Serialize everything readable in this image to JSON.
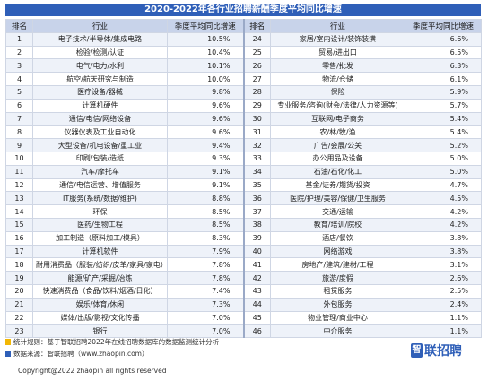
{
  "chart_data": {
    "type": "table",
    "title": "2020-2022年各行业招聘薪酬季度平均同比增速",
    "columns": [
      "排名",
      "行业",
      "季度平均同比增速",
      "排名",
      "行业",
      "季度平均同比增速"
    ],
    "rows": [
      {
        "rank": "1",
        "industry": "电子技术/半导体/集成电路",
        "value": "10.5%"
      },
      {
        "rank": "2",
        "industry": "检验/检测/认证",
        "value": "10.4%"
      },
      {
        "rank": "3",
        "industry": "电气/电力/水利",
        "value": "10.1%"
      },
      {
        "rank": "4",
        "industry": "航空/航天研究与制造",
        "value": "10.0%"
      },
      {
        "rank": "5",
        "industry": "医疗设备/器械",
        "value": "9.8%"
      },
      {
        "rank": "6",
        "industry": "计算机硬件",
        "value": "9.6%"
      },
      {
        "rank": "7",
        "industry": "通信/电信/网络设备",
        "value": "9.6%"
      },
      {
        "rank": "8",
        "industry": "仪器仪表及工业自动化",
        "value": "9.6%"
      },
      {
        "rank": "9",
        "industry": "大型设备/机电设备/重工业",
        "value": "9.4%"
      },
      {
        "rank": "10",
        "industry": "印刷/包装/造纸",
        "value": "9.3%"
      },
      {
        "rank": "11",
        "industry": "汽车/摩托车",
        "value": "9.1%"
      },
      {
        "rank": "12",
        "industry": "通信/电信运营、增值服务",
        "value": "9.1%"
      },
      {
        "rank": "13",
        "industry": "IT服务(系统/数据/维护)",
        "value": "8.8%"
      },
      {
        "rank": "14",
        "industry": "环保",
        "value": "8.5%"
      },
      {
        "rank": "15",
        "industry": "医药/生物工程",
        "value": "8.5%"
      },
      {
        "rank": "16",
        "industry": "加工制造（原料加工/模具）",
        "value": "8.3%"
      },
      {
        "rank": "17",
        "industry": "计算机软件",
        "value": "7.9%"
      },
      {
        "rank": "18",
        "industry": "耐用消费品（服装/纺织/皮革/家具/家电）",
        "value": "7.8%"
      },
      {
        "rank": "19",
        "industry": "能源/矿产/采掘/冶炼",
        "value": "7.8%"
      },
      {
        "rank": "20",
        "industry": "快速消费品（食品/饮料/烟酒/日化）",
        "value": "7.4%"
      },
      {
        "rank": "21",
        "industry": "娱乐/体育/休闲",
        "value": "7.3%"
      },
      {
        "rank": "22",
        "industry": "媒体/出版/影视/文化传播",
        "value": "7.0%"
      },
      {
        "rank": "23",
        "industry": "银行",
        "value": "7.0%"
      },
      {
        "rank": "24",
        "industry": "家居/室内设计/装饰装潢",
        "value": "6.6%"
      },
      {
        "rank": "25",
        "industry": "贸易/进出口",
        "value": "6.5%"
      },
      {
        "rank": "26",
        "industry": "零售/批发",
        "value": "6.3%"
      },
      {
        "rank": "27",
        "industry": "物流/仓储",
        "value": "6.1%"
      },
      {
        "rank": "28",
        "industry": "保险",
        "value": "5.9%"
      },
      {
        "rank": "29",
        "industry": "专业服务/咨询(财会/法律/人力资源等)",
        "value": "5.7%"
      },
      {
        "rank": "30",
        "industry": "互联网/电子商务",
        "value": "5.4%"
      },
      {
        "rank": "31",
        "industry": "农/林/牧/渔",
        "value": "5.4%"
      },
      {
        "rank": "32",
        "industry": "广告/会展/公关",
        "value": "5.2%"
      },
      {
        "rank": "33",
        "industry": "办公用品及设备",
        "value": "5.0%"
      },
      {
        "rank": "34",
        "industry": "石油/石化/化工",
        "value": "5.0%"
      },
      {
        "rank": "35",
        "industry": "基金/证券/期货/投资",
        "value": "4.7%"
      },
      {
        "rank": "36",
        "industry": "医院/护理/美容/保健/卫生服务",
        "value": "4.5%"
      },
      {
        "rank": "37",
        "industry": "交通/运输",
        "value": "4.2%"
      },
      {
        "rank": "38",
        "industry": "教育/培训/院校",
        "value": "4.2%"
      },
      {
        "rank": "39",
        "industry": "酒店/餐饮",
        "value": "3.8%"
      },
      {
        "rank": "40",
        "industry": "网络游戏",
        "value": "3.8%"
      },
      {
        "rank": "41",
        "industry": "房地产/建筑/建材/工程",
        "value": "3.1%"
      },
      {
        "rank": "42",
        "industry": "旅游/度假",
        "value": "2.6%"
      },
      {
        "rank": "43",
        "industry": "租赁服务",
        "value": "2.5%"
      },
      {
        "rank": "44",
        "industry": "外包服务",
        "value": "2.4%"
      },
      {
        "rank": "45",
        "industry": "物业管理/商业中心",
        "value": "1.1%"
      },
      {
        "rank": "46",
        "industry": "中介服务",
        "value": "1.1%"
      }
    ]
  },
  "footer": {
    "method": "统计规则：基于智联招聘2022年在线招聘数据库的数据监测统计分析",
    "source": "数据来源：智联招聘（www.zhaopin.com）",
    "copyright": "Copyright@2022 zhaopin all rights reserved"
  },
  "logo": {
    "mark": "智",
    "text": "联招聘"
  },
  "colors": {
    "header_bar": "#2f5fb8",
    "head_row": "#c8d3ea",
    "stripe": "#eef2f9",
    "bullet_yellow": "#f2b705",
    "bullet_blue": "#2f5fb8"
  }
}
